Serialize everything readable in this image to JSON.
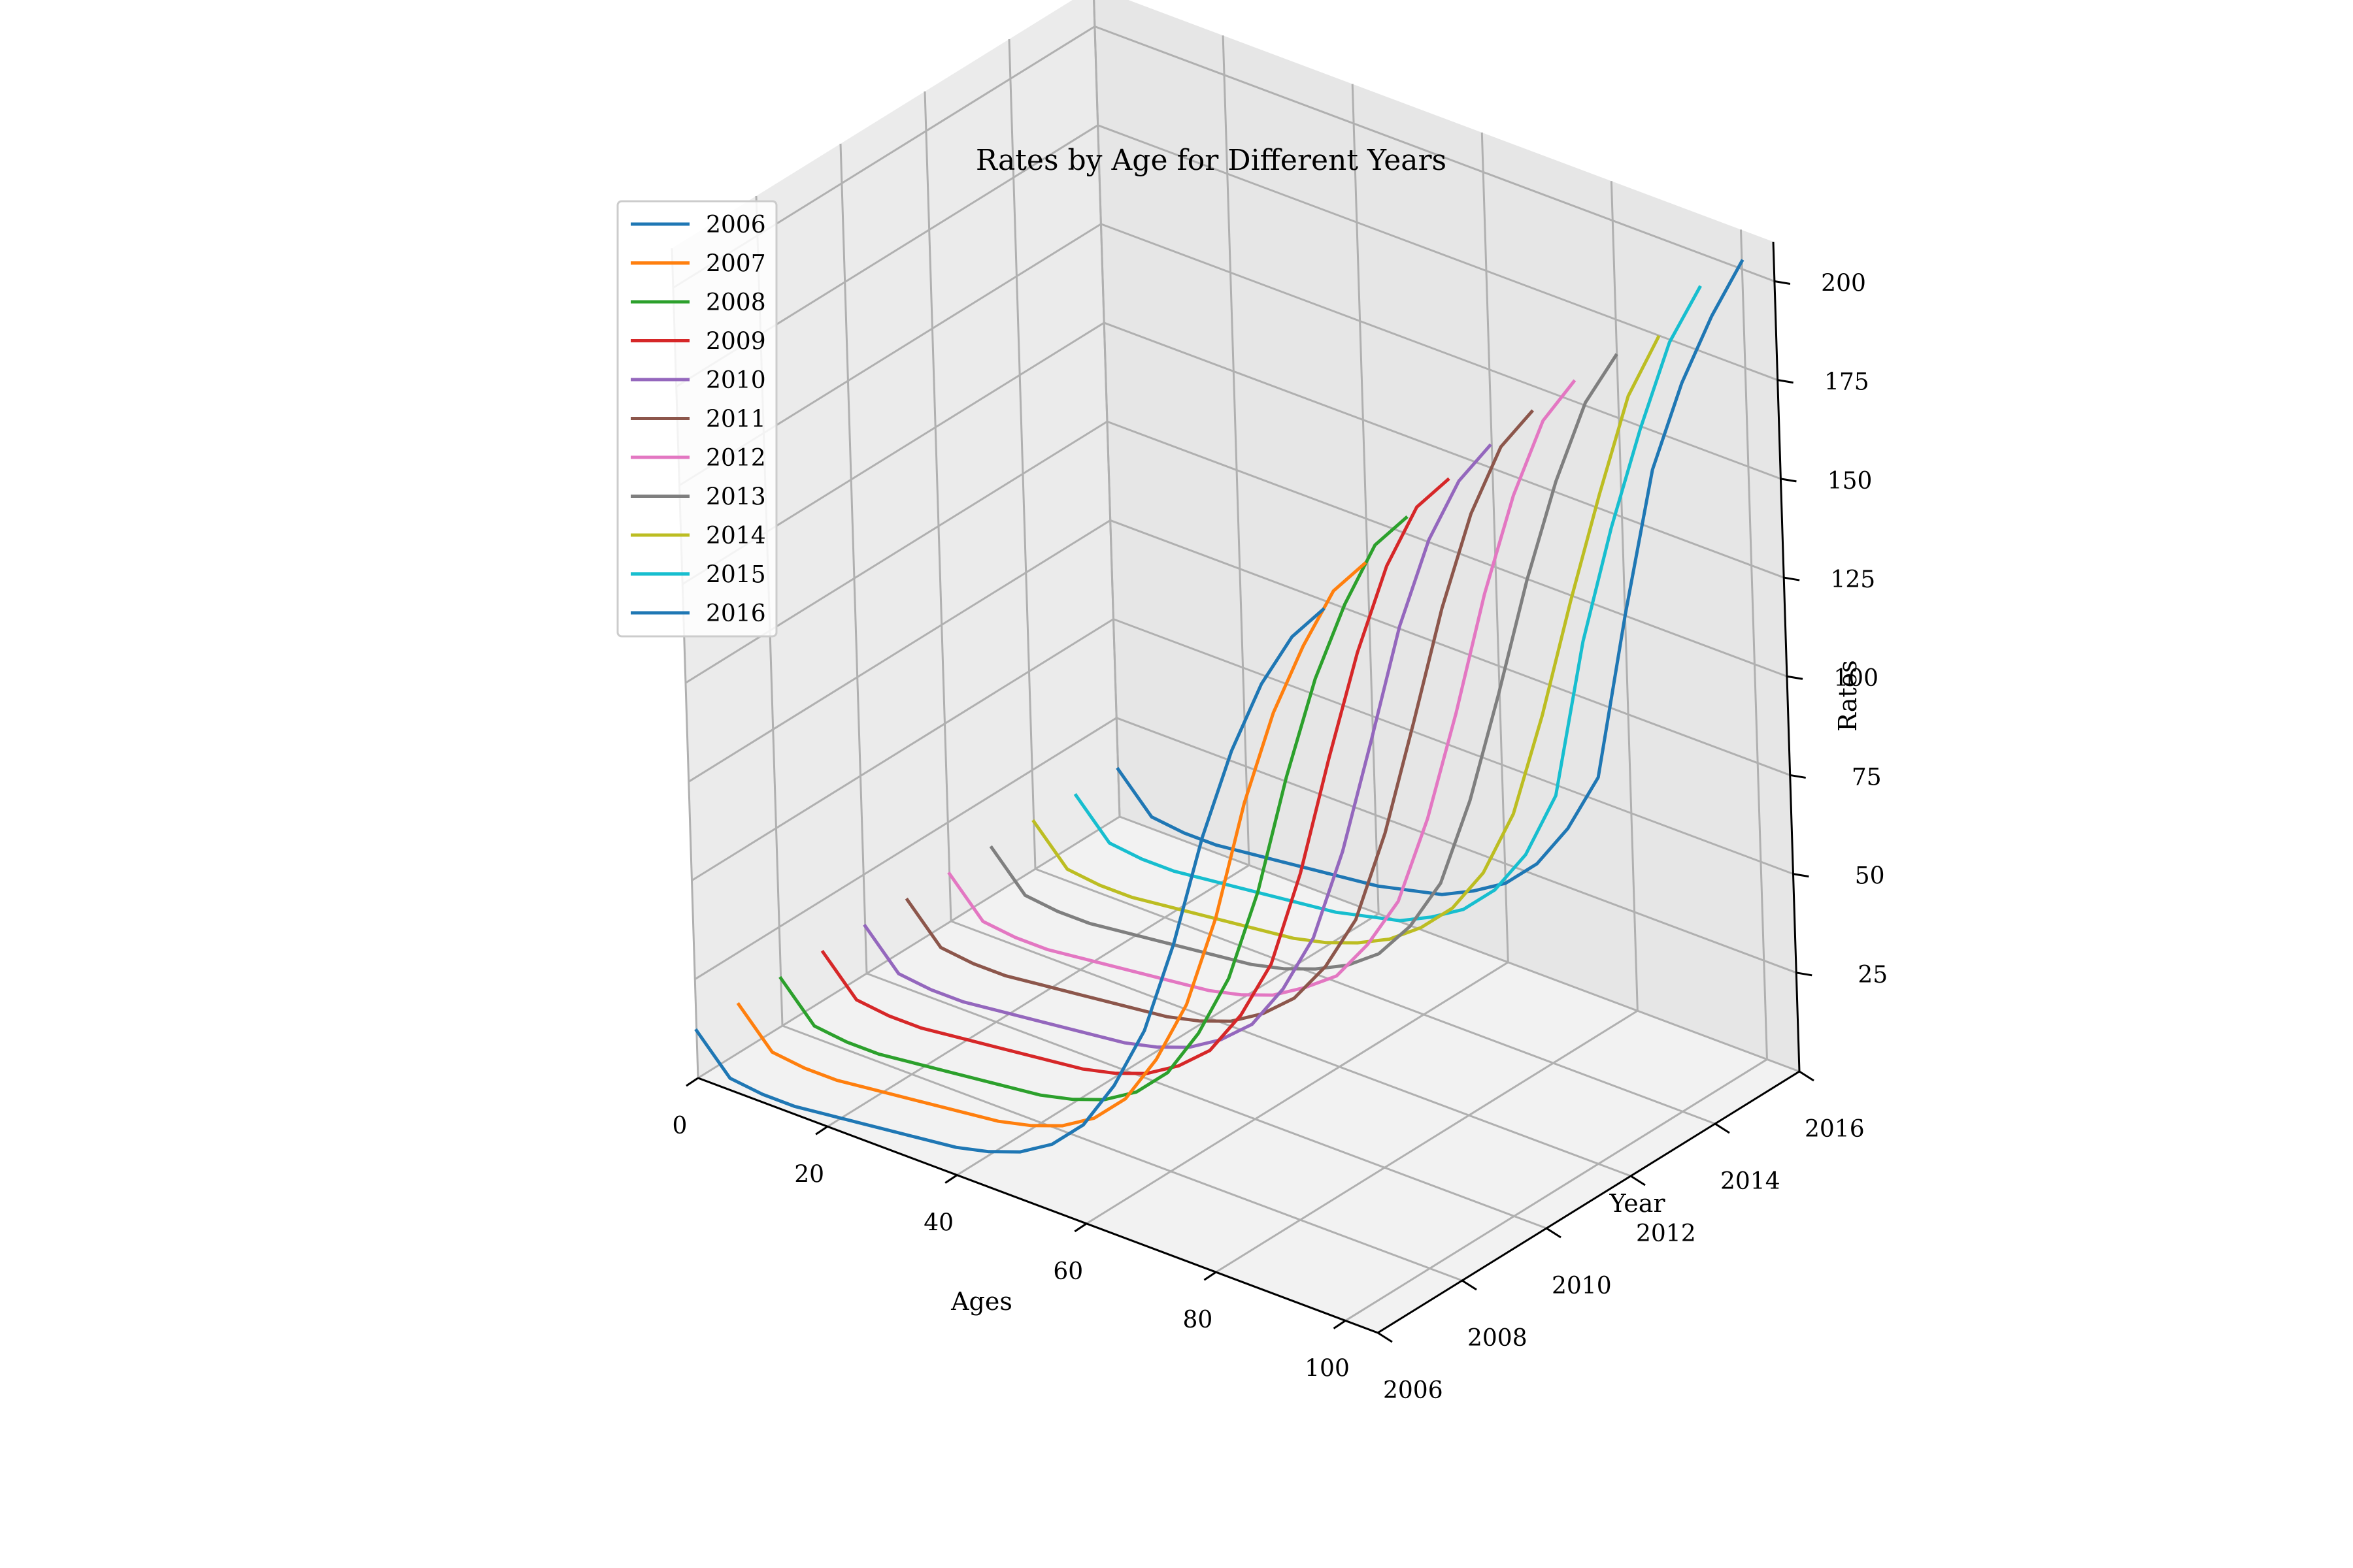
{
  "chart_data": {
    "type": "line",
    "projection": "3d",
    "title": "Rates by Age for Different Years",
    "xlabel": "Ages",
    "ylabel": "Year",
    "zlabel": "Rates",
    "xlim": [
      0,
      105
    ],
    "ylim": [
      2006,
      2016
    ],
    "zlim": [
      0,
      210
    ],
    "xticks": [
      "0",
      "20",
      "40",
      "60",
      "80",
      "100"
    ],
    "yticks": [
      "2006",
      "2008",
      "2010",
      "2012",
      "2014",
      "2016"
    ],
    "zticks": [
      "25",
      "50",
      "75",
      "100",
      "125",
      "150",
      "175",
      "200"
    ],
    "grid": true,
    "legend_position": "upper-left",
    "ages": [
      0,
      5,
      10,
      15,
      20,
      25,
      30,
      35,
      40,
      45,
      50,
      55,
      60,
      65,
      70,
      75,
      80,
      85,
      90,
      95,
      100
    ],
    "series": [
      {
        "name": "2006",
        "color": "#1f77b4",
        "year": 2006,
        "values": [
          12,
          3,
          2,
          2,
          3,
          4,
          5,
          6,
          7,
          9,
          12,
          17,
          25,
          38,
          55,
          80,
          110,
          135,
          155,
          170,
          180
        ]
      },
      {
        "name": "2007",
        "color": "#ff7f0e",
        "year": 2007,
        "values": [
          12,
          3,
          2,
          2,
          3,
          4,
          5,
          6,
          7,
          9,
          12,
          17,
          25,
          38,
          55,
          80,
          112,
          138,
          158,
          175,
          185
        ]
      },
      {
        "name": "2008",
        "color": "#2ca02c",
        "year": 2008,
        "values": [
          12,
          3,
          2,
          2,
          3,
          4,
          5,
          6,
          7,
          9,
          12,
          17,
          25,
          38,
          55,
          80,
          112,
          140,
          162,
          180,
          190
        ]
      },
      {
        "name": "2009",
        "color": "#d62728",
        "year": 2009,
        "values": [
          12,
          3,
          2,
          2,
          3,
          4,
          5,
          6,
          7,
          9,
          12,
          17,
          24,
          36,
          52,
          78,
          110,
          140,
          165,
          183,
          193
        ]
      },
      {
        "name": "2010",
        "color": "#9467bd",
        "year": 2010,
        "values": [
          12,
          3,
          2,
          2,
          3,
          4,
          5,
          6,
          7,
          9,
          12,
          17,
          24,
          36,
          52,
          77,
          108,
          140,
          165,
          183,
          195
        ]
      },
      {
        "name": "2011",
        "color": "#8c564b",
        "year": 2011,
        "values": [
          12,
          3,
          2,
          2,
          3,
          4,
          5,
          6,
          7,
          9,
          12,
          17,
          24,
          35,
          50,
          75,
          106,
          138,
          165,
          185,
          197
        ]
      },
      {
        "name": "2012",
        "color": "#e377c2",
        "year": 2012,
        "values": [
          12,
          3,
          2,
          2,
          3,
          4,
          5,
          6,
          7,
          9,
          12,
          17,
          23,
          34,
          48,
          72,
          102,
          135,
          163,
          185,
          198
        ]
      },
      {
        "name": "2013",
        "color": "#7f7f7f",
        "year": 2013,
        "values": [
          12,
          3,
          2,
          2,
          3,
          4,
          5,
          6,
          7,
          9,
          12,
          16,
          22,
          32,
          46,
          70,
          100,
          132,
          160,
          183,
          198
        ]
      },
      {
        "name": "2014",
        "color": "#bcbd22",
        "year": 2014,
        "values": [
          12,
          3,
          2,
          2,
          3,
          4,
          5,
          6,
          7,
          9,
          12,
          16,
          22,
          30,
          42,
          60,
          88,
          120,
          150,
          178,
          196
        ]
      },
      {
        "name": "2015",
        "color": "#17becf",
        "year": 2015,
        "values": [
          12,
          3,
          2,
          2,
          3,
          4,
          5,
          6,
          7,
          9,
          11,
          15,
          20,
          28,
          40,
          58,
          100,
          132,
          160,
          185,
          202
        ]
      },
      {
        "name": "2016",
        "color": "#1f77b4",
        "year": 2016,
        "values": [
          12,
          3,
          2,
          2,
          3,
          4,
          5,
          6,
          7,
          9,
          11,
          15,
          20,
          28,
          40,
          56,
          100,
          140,
          165,
          185,
          202
        ]
      }
    ]
  }
}
